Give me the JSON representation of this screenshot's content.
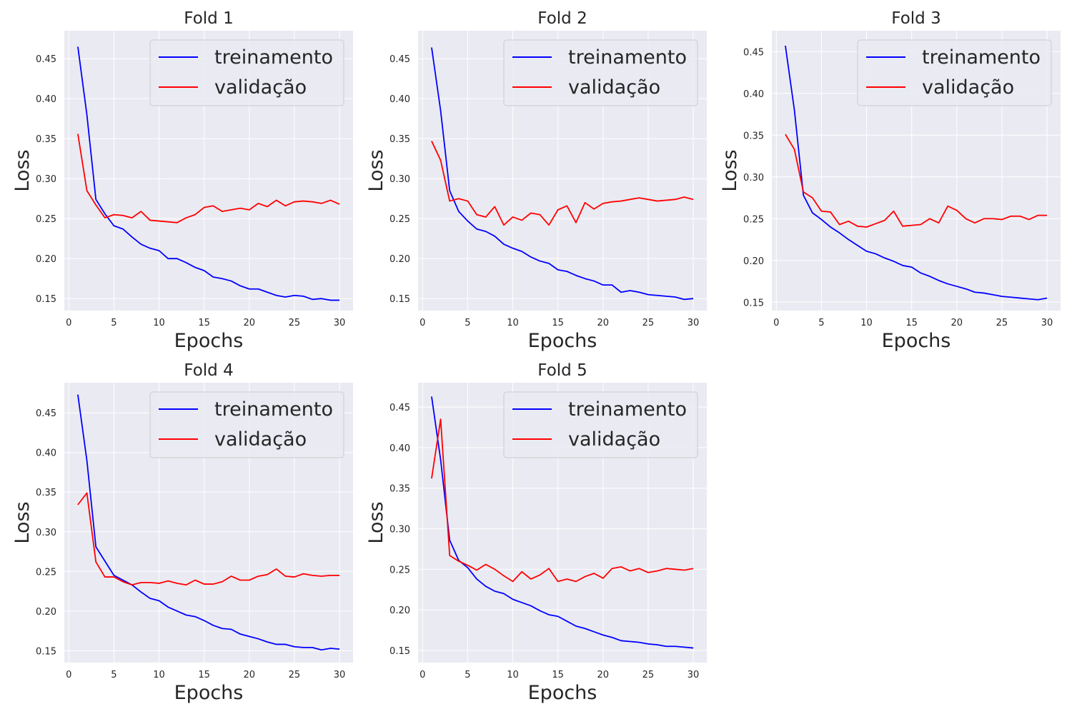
{
  "chart_data": [
    {
      "type": "line",
      "title": "Fold 1",
      "xlabel": "Epochs",
      "ylabel": "Loss",
      "xlim": [
        -0.5,
        31.5
      ],
      "ylim": [
        0.135,
        0.485
      ],
      "xticks": [
        0,
        5,
        10,
        15,
        20,
        25,
        30
      ],
      "yticks": [
        0.15,
        0.2,
        0.25,
        0.3,
        0.35,
        0.4,
        0.45
      ],
      "grid": true,
      "legend": "top-right",
      "x": [
        1,
        2,
        3,
        4,
        5,
        6,
        7,
        8,
        9,
        10,
        11,
        12,
        13,
        14,
        15,
        16,
        17,
        18,
        19,
        20,
        21,
        22,
        23,
        24,
        25,
        26,
        27,
        28,
        29,
        30
      ],
      "series": [
        {
          "name": "treinamento",
          "color": "#0000ff",
          "values": [
            0.465,
            0.38,
            0.274,
            0.256,
            0.241,
            0.237,
            0.227,
            0.218,
            0.213,
            0.21,
            0.2,
            0.2,
            0.195,
            0.189,
            0.185,
            0.177,
            0.175,
            0.172,
            0.166,
            0.162,
            0.162,
            0.158,
            0.154,
            0.152,
            0.154,
            0.153,
            0.149,
            0.15,
            0.148,
            0.148
          ]
        },
        {
          "name": "validação",
          "color": "#ff0000",
          "values": [
            0.356,
            0.285,
            0.267,
            0.251,
            0.255,
            0.254,
            0.251,
            0.259,
            0.248,
            0.247,
            0.246,
            0.245,
            0.251,
            0.255,
            0.264,
            0.266,
            0.259,
            0.261,
            0.263,
            0.261,
            0.269,
            0.265,
            0.273,
            0.266,
            0.271,
            0.272,
            0.271,
            0.269,
            0.273,
            0.268
          ]
        }
      ]
    },
    {
      "type": "line",
      "title": "Fold 2",
      "xlabel": "Epochs",
      "ylabel": "Loss",
      "xlim": [
        -0.5,
        31.5
      ],
      "ylim": [
        0.135,
        0.485
      ],
      "xticks": [
        0,
        5,
        10,
        15,
        20,
        25,
        30
      ],
      "yticks": [
        0.15,
        0.2,
        0.25,
        0.3,
        0.35,
        0.4,
        0.45
      ],
      "grid": true,
      "legend": "top-right",
      "x": [
        1,
        2,
        3,
        4,
        5,
        6,
        7,
        8,
        9,
        10,
        11,
        12,
        13,
        14,
        15,
        16,
        17,
        18,
        19,
        20,
        21,
        22,
        23,
        24,
        25,
        26,
        27,
        28,
        29,
        30
      ],
      "series": [
        {
          "name": "treinamento",
          "color": "#0000ff",
          "values": [
            0.464,
            0.385,
            0.285,
            0.259,
            0.247,
            0.237,
            0.234,
            0.228,
            0.218,
            0.213,
            0.209,
            0.202,
            0.197,
            0.194,
            0.186,
            0.184,
            0.179,
            0.175,
            0.172,
            0.167,
            0.167,
            0.158,
            0.16,
            0.158,
            0.155,
            0.154,
            0.153,
            0.152,
            0.149,
            0.15
          ]
        },
        {
          "name": "validação",
          "color": "#ff0000",
          "values": [
            0.347,
            0.323,
            0.272,
            0.275,
            0.272,
            0.255,
            0.252,
            0.265,
            0.242,
            0.252,
            0.248,
            0.257,
            0.255,
            0.242,
            0.261,
            0.266,
            0.245,
            0.27,
            0.262,
            0.269,
            0.271,
            0.272,
            0.274,
            0.276,
            0.274,
            0.272,
            0.273,
            0.274,
            0.277,
            0.274
          ]
        }
      ]
    },
    {
      "type": "line",
      "title": "Fold 3",
      "xlabel": "Epochs",
      "ylabel": "Loss",
      "xlim": [
        -0.5,
        31.5
      ],
      "ylim": [
        0.14,
        0.475
      ],
      "xticks": [
        0,
        5,
        10,
        15,
        20,
        25,
        30
      ],
      "yticks": [
        0.15,
        0.2,
        0.25,
        0.3,
        0.35,
        0.4,
        0.45
      ],
      "grid": true,
      "legend": "top-right",
      "x": [
        1,
        2,
        3,
        4,
        5,
        6,
        7,
        8,
        9,
        10,
        11,
        12,
        13,
        14,
        15,
        16,
        17,
        18,
        19,
        20,
        21,
        22,
        23,
        24,
        25,
        26,
        27,
        28,
        29,
        30
      ],
      "series": [
        {
          "name": "treinamento",
          "color": "#0000ff",
          "values": [
            0.457,
            0.38,
            0.278,
            0.257,
            0.249,
            0.24,
            0.233,
            0.225,
            0.218,
            0.211,
            0.208,
            0.203,
            0.199,
            0.194,
            0.192,
            0.185,
            0.181,
            0.176,
            0.172,
            0.169,
            0.166,
            0.162,
            0.161,
            0.159,
            0.157,
            0.156,
            0.155,
            0.154,
            0.153,
            0.155
          ]
        },
        {
          "name": "validação",
          "color": "#ff0000",
          "values": [
            0.351,
            0.333,
            0.282,
            0.275,
            0.259,
            0.258,
            0.243,
            0.247,
            0.241,
            0.24,
            0.244,
            0.248,
            0.259,
            0.241,
            0.242,
            0.243,
            0.25,
            0.245,
            0.265,
            0.26,
            0.25,
            0.245,
            0.25,
            0.25,
            0.249,
            0.253,
            0.253,
            0.249,
            0.254,
            0.254
          ]
        }
      ]
    },
    {
      "type": "line",
      "title": "Fold 4",
      "xlabel": "Epochs",
      "ylabel": "Loss",
      "xlim": [
        -0.5,
        31.5
      ],
      "ylim": [
        0.135,
        0.488
      ],
      "xticks": [
        0,
        5,
        10,
        15,
        20,
        25,
        30
      ],
      "yticks": [
        0.15,
        0.2,
        0.25,
        0.3,
        0.35,
        0.4,
        0.45
      ],
      "grid": true,
      "legend": "top-right",
      "x": [
        1,
        2,
        3,
        4,
        5,
        6,
        7,
        8,
        9,
        10,
        11,
        12,
        13,
        14,
        15,
        16,
        17,
        18,
        19,
        20,
        21,
        22,
        23,
        24,
        25,
        26,
        27,
        28,
        29,
        30
      ],
      "series": [
        {
          "name": "treinamento",
          "color": "#0000ff",
          "values": [
            0.473,
            0.39,
            0.281,
            0.263,
            0.245,
            0.239,
            0.233,
            0.224,
            0.216,
            0.213,
            0.205,
            0.2,
            0.195,
            0.193,
            0.188,
            0.182,
            0.178,
            0.177,
            0.171,
            0.168,
            0.165,
            0.161,
            0.158,
            0.158,
            0.155,
            0.154,
            0.154,
            0.151,
            0.153,
            0.152
          ]
        },
        {
          "name": "validação",
          "color": "#ff0000",
          "values": [
            0.334,
            0.349,
            0.262,
            0.243,
            0.243,
            0.237,
            0.233,
            0.236,
            0.236,
            0.235,
            0.238,
            0.235,
            0.233,
            0.239,
            0.234,
            0.234,
            0.237,
            0.244,
            0.239,
            0.239,
            0.244,
            0.246,
            0.253,
            0.244,
            0.243,
            0.247,
            0.245,
            0.244,
            0.245,
            0.245
          ]
        }
      ]
    },
    {
      "type": "line",
      "title": "Fold 5",
      "xlabel": "Epochs",
      "ylabel": "Loss",
      "xlim": [
        -0.5,
        31.5
      ],
      "ylim": [
        0.135,
        0.48
      ],
      "xticks": [
        0,
        5,
        10,
        15,
        20,
        25,
        30
      ],
      "yticks": [
        0.15,
        0.2,
        0.25,
        0.3,
        0.35,
        0.4,
        0.45
      ],
      "grid": true,
      "legend": "top-right",
      "x": [
        1,
        2,
        3,
        4,
        5,
        6,
        7,
        8,
        9,
        10,
        11,
        12,
        13,
        14,
        15,
        16,
        17,
        18,
        19,
        20,
        21,
        22,
        23,
        24,
        25,
        26,
        27,
        28,
        29,
        30
      ],
      "series": [
        {
          "name": "treinamento",
          "color": "#0000ff",
          "values": [
            0.463,
            0.385,
            0.286,
            0.261,
            0.252,
            0.238,
            0.229,
            0.223,
            0.22,
            0.213,
            0.209,
            0.205,
            0.199,
            0.194,
            0.192,
            0.186,
            0.18,
            0.177,
            0.173,
            0.169,
            0.166,
            0.162,
            0.161,
            0.16,
            0.158,
            0.157,
            0.155,
            0.155,
            0.154,
            0.153
          ]
        },
        {
          "name": "validação",
          "color": "#ff0000",
          "values": [
            0.362,
            0.435,
            0.267,
            0.26,
            0.255,
            0.249,
            0.256,
            0.25,
            0.242,
            0.235,
            0.247,
            0.238,
            0.243,
            0.251,
            0.235,
            0.238,
            0.235,
            0.241,
            0.245,
            0.239,
            0.251,
            0.253,
            0.248,
            0.251,
            0.246,
            0.248,
            0.251,
            0.25,
            0.249,
            0.251
          ]
        }
      ]
    }
  ]
}
